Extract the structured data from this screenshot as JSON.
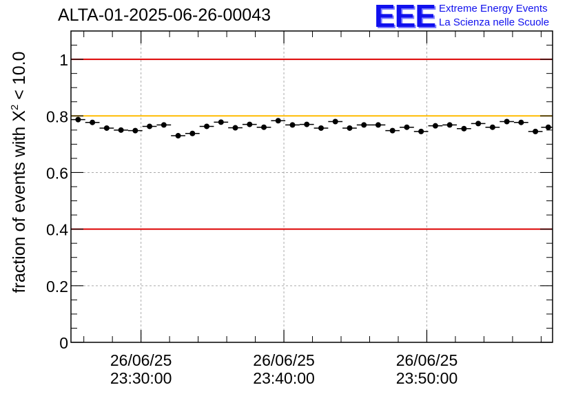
{
  "header": {
    "title": "ALTA-01-2025-06-26-00043",
    "logo": "EEE",
    "logo_line1": "Extreme Energy Events",
    "logo_line2": "La Scienza nelle Scuole",
    "logo_color": "#1010ee"
  },
  "chart_data": {
    "type": "scatter",
    "title": "ALTA-01-2025-06-26-00043",
    "ylabel": "fraction of events with X² < 10.0",
    "ylabel_main": "fraction of events with X",
    "ylabel_sup": "2",
    "ylabel_tail": " < 10.0",
    "ylim": [
      0,
      1.1
    ],
    "y_ticks": [
      0,
      0.2,
      0.4,
      0.6,
      0.8,
      1
    ],
    "y_tick_labels": [
      "0",
      "0.2",
      "0.4",
      "0.6",
      "0.8",
      "1"
    ],
    "x_tick_labels": [
      {
        "date": "26/06/25",
        "time": "23:30:00"
      },
      {
        "date": "26/06/25",
        "time": "23:40:00"
      },
      {
        "date": "26/06/25",
        "time": "23:50:00"
      }
    ],
    "x_tick_minutes": [
      30,
      40,
      50
    ],
    "xlim_minutes": [
      25.1,
      58.8
    ],
    "bin_width_minutes": 1.0,
    "grid": true,
    "reference_lines": [
      {
        "y": 1.0,
        "color": "#dd0000"
      },
      {
        "y": 0.8,
        "color": "#ffbb00"
      },
      {
        "y": 0.4,
        "color": "#dd0000"
      }
    ],
    "series": [
      {
        "color": "#000000",
        "x_minutes": [
          25.6,
          26.6,
          27.6,
          28.6,
          29.6,
          30.6,
          31.6,
          32.6,
          33.6,
          34.6,
          35.6,
          36.6,
          37.6,
          38.6,
          39.6,
          40.6,
          41.6,
          42.6,
          43.6,
          44.6,
          45.6,
          46.6,
          47.6,
          48.6,
          49.6,
          50.6,
          51.6,
          52.6,
          53.6,
          54.6,
          55.6,
          56.6,
          57.6,
          58.5
        ],
        "values": [
          0.787,
          0.777,
          0.757,
          0.75,
          0.748,
          0.763,
          0.768,
          0.73,
          0.738,
          0.763,
          0.778,
          0.758,
          0.77,
          0.76,
          0.783,
          0.768,
          0.77,
          0.757,
          0.78,
          0.757,
          0.768,
          0.768,
          0.748,
          0.76,
          0.745,
          0.765,
          0.768,
          0.755,
          0.773,
          0.76,
          0.78,
          0.777,
          0.745,
          0.76
        ],
        "errors": [
          0.009,
          0.008,
          0.008,
          0.008,
          0.008,
          0.008,
          0.008,
          0.009,
          0.009,
          0.008,
          0.008,
          0.008,
          0.008,
          0.008,
          0.008,
          0.008,
          0.008,
          0.008,
          0.008,
          0.008,
          0.008,
          0.008,
          0.008,
          0.008,
          0.008,
          0.008,
          0.008,
          0.008,
          0.008,
          0.008,
          0.008,
          0.008,
          0.008,
          0.009
        ]
      }
    ]
  }
}
